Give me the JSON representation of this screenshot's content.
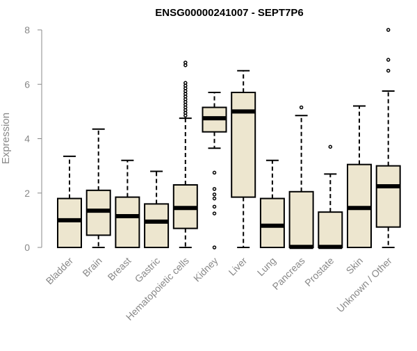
{
  "chart_data": {
    "type": "boxplot",
    "title": "ENSG00000241007 - SEPT7P6",
    "xlabel": "",
    "ylabel": "Expression",
    "ylim": [
      0,
      8
    ],
    "yticks": [
      0,
      2,
      4,
      6,
      8
    ],
    "categories": [
      "Bladder",
      "Brain",
      "Breast",
      "Gastric",
      "Hematopoietic cells",
      "Kidney",
      "Liver",
      "Lung",
      "Pancreas",
      "Prostate",
      "Skin",
      "Unknown / Other"
    ],
    "boxes": [
      {
        "name": "Bladder",
        "whisker_low": 0.0,
        "q1": 0.0,
        "median": 1.0,
        "q3": 1.8,
        "whisker_high": 3.35,
        "outliers": []
      },
      {
        "name": "Brain",
        "whisker_low": 0.0,
        "q1": 0.45,
        "median": 1.35,
        "q3": 2.1,
        "whisker_high": 4.35,
        "outliers": []
      },
      {
        "name": "Breast",
        "whisker_low": 0.0,
        "q1": 0.0,
        "median": 1.15,
        "q3": 1.85,
        "whisker_high": 3.2,
        "outliers": []
      },
      {
        "name": "Gastric",
        "whisker_low": 0.0,
        "q1": 0.0,
        "median": 0.95,
        "q3": 1.6,
        "whisker_high": 2.8,
        "outliers": []
      },
      {
        "name": "Hematopoietic cells",
        "whisker_low": 0.0,
        "q1": 0.7,
        "median": 1.45,
        "q3": 2.3,
        "whisker_high": 4.75,
        "outliers": [
          4.85,
          4.95,
          5.05,
          5.15,
          5.25,
          5.35,
          5.45,
          5.55,
          5.65,
          5.75,
          5.85,
          5.95,
          6.05,
          6.7,
          6.8
        ]
      },
      {
        "name": "Kidney",
        "whisker_low": 3.65,
        "q1": 4.25,
        "median": 4.75,
        "q3": 5.15,
        "whisker_high": 5.7,
        "outliers": [
          0.0,
          1.25,
          1.5,
          1.8,
          1.95,
          2.15,
          2.75
        ]
      },
      {
        "name": "Liver",
        "whisker_low": 0.0,
        "q1": 1.85,
        "median": 5.0,
        "q3": 5.7,
        "whisker_high": 6.5,
        "outliers": []
      },
      {
        "name": "Lung",
        "whisker_low": 0.0,
        "q1": 0.0,
        "median": 0.8,
        "q3": 1.8,
        "whisker_high": 3.2,
        "outliers": []
      },
      {
        "name": "Pancreas",
        "whisker_low": 0.0,
        "q1": 0.0,
        "median": 0.02,
        "q3": 2.05,
        "whisker_high": 4.85,
        "outliers": [
          5.15
        ]
      },
      {
        "name": "Prostate",
        "whisker_low": 0.0,
        "q1": 0.0,
        "median": 0.02,
        "q3": 1.3,
        "whisker_high": 2.7,
        "outliers": [
          3.7
        ]
      },
      {
        "name": "Skin",
        "whisker_low": 0.0,
        "q1": 0.0,
        "median": 1.45,
        "q3": 3.05,
        "whisker_high": 5.2,
        "outliers": []
      },
      {
        "name": "Unknown / Other",
        "whisker_low": 0.0,
        "q1": 0.75,
        "median": 2.25,
        "q3": 3.0,
        "whisker_high": 5.75,
        "outliers": [
          6.5,
          6.9,
          8.0
        ]
      }
    ],
    "colors": {
      "box_fill": "#ede6cf",
      "box_stroke": "#000000",
      "median": "#000000",
      "axis": "#888888",
      "tick_label": "#888888",
      "title": "#000000"
    }
  }
}
